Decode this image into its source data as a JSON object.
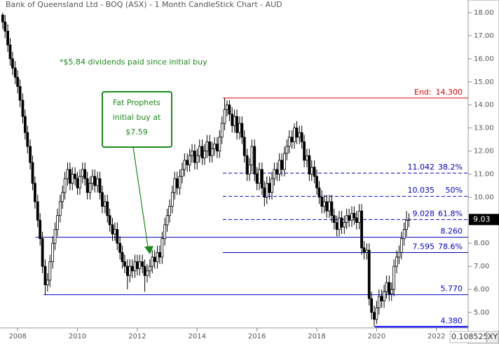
{
  "chart_data": {
    "type": "candlestick",
    "title": "Bank of Queensland Ltd - BOQ (ASX) - 1 Month CandleStick Chart - AUD",
    "note": "*$5.84 dividends paid since initial buy",
    "callout": [
      "Fat Prophets",
      "initial buy at",
      "$7.59"
    ],
    "x": [
      2007.5,
      2007.58,
      2007.67,
      2007.75,
      2007.83,
      2007.92,
      2008,
      2008.08,
      2008.17,
      2008.25,
      2008.33,
      2008.42,
      2008.5,
      2008.58,
      2008.67,
      2008.75,
      2008.83,
      2008.92,
      2009,
      2009.08,
      2009.17,
      2009.25,
      2009.33,
      2009.42,
      2009.5,
      2009.58,
      2009.67,
      2009.75,
      2009.83,
      2009.92,
      2010,
      2010.08,
      2010.17,
      2010.25,
      2010.33,
      2010.42,
      2010.5,
      2010.58,
      2010.67,
      2010.75,
      2010.83,
      2010.92,
      2011,
      2011.08,
      2011.17,
      2011.25,
      2011.33,
      2011.42,
      2011.5,
      2011.58,
      2011.67,
      2011.75,
      2011.83,
      2011.92,
      2012,
      2012.08,
      2012.17,
      2012.25,
      2012.33,
      2012.42,
      2012.5,
      2012.58,
      2012.67,
      2012.75,
      2012.83,
      2012.92,
      2013,
      2013.08,
      2013.17,
      2013.25,
      2013.33,
      2013.42,
      2013.5,
      2013.58,
      2013.67,
      2013.75,
      2013.83,
      2013.92,
      2014,
      2014.08,
      2014.17,
      2014.25,
      2014.33,
      2014.42,
      2014.5,
      2014.58,
      2014.67,
      2014.75,
      2014.83,
      2014.92,
      2015,
      2015.08,
      2015.17,
      2015.25,
      2015.33,
      2015.42,
      2015.5,
      2015.58,
      2015.67,
      2015.75,
      2015.83,
      2015.92,
      2016,
      2016.08,
      2016.17,
      2016.25,
      2016.33,
      2016.42,
      2016.5,
      2016.58,
      2016.67,
      2016.75,
      2016.83,
      2016.92,
      2017,
      2017.08,
      2017.17,
      2017.25,
      2017.33,
      2017.42,
      2017.5,
      2017.58,
      2017.67,
      2017.75,
      2017.83,
      2017.92,
      2018,
      2018.08,
      2018.17,
      2018.25,
      2018.33,
      2018.42,
      2018.5,
      2018.58,
      2018.67,
      2018.75,
      2018.83,
      2018.92,
      2019,
      2019.08,
      2019.17,
      2019.25,
      2019.33,
      2019.42,
      2019.5,
      2019.58,
      2019.67,
      2019.75,
      2019.83,
      2019.92,
      2020,
      2020.08,
      2020.17,
      2020.25,
      2020.33,
      2020.42,
      2020.5,
      2020.58,
      2020.67,
      2020.75,
      2020.83,
      2020.92,
      2021,
      2021.08
    ],
    "open": [
      17.9,
      17.6,
      17.2,
      16.6,
      16.0,
      15.6,
      15.2,
      14.8,
      14.2,
      13.5,
      12.8,
      12.2,
      11.5,
      10.6,
      9.8,
      9.0,
      8.2,
      7.0,
      6.2,
      6.4,
      7.2,
      8.0,
      8.6,
      9.2,
      9.8,
      10.2,
      10.8,
      11.2,
      10.6,
      11.0,
      10.8,
      10.4,
      10.9,
      11.2,
      10.8,
      10.2,
      10.6,
      10.9,
      10.5,
      10.8,
      10.2,
      9.6,
      9.8,
      9.2,
      8.8,
      8.4,
      8.6,
      8.0,
      7.6,
      7.2,
      7.0,
      6.6,
      7.0,
      6.8,
      7.2,
      6.9,
      7.2,
      7.0,
      6.6,
      6.8,
      7.0,
      7.4,
      7.2,
      7.6,
      7.4,
      8.2,
      8.8,
      9.2,
      9.6,
      10.2,
      10.8,
      10.4,
      10.9,
      11.2,
      11.6,
      11.4,
      11.8,
      12.0,
      11.5,
      11.8,
      12.2,
      11.7,
      12.0,
      12.4,
      11.8,
      12.1,
      12.3,
      12.0,
      12.6,
      13.2,
      13.8,
      14.0,
      13.6,
      13.1,
      13.5,
      12.8,
      13.2,
      12.6,
      11.8,
      11.0,
      11.4,
      12.2,
      11.0,
      10.6,
      11.2,
      10.4,
      10.0,
      10.6,
      10.2,
      10.8,
      11.2,
      11.0,
      11.6,
      11.2,
      11.9,
      12.2,
      12.6,
      12.4,
      13.0,
      12.6,
      12.8,
      12.4,
      11.6,
      11.8,
      11.0,
      11.3,
      10.9,
      10.4,
      10.0,
      9.6,
      9.8,
      9.4,
      9.8,
      9.2,
      8.9,
      8.6,
      9.1,
      8.7,
      8.9,
      9.2,
      9.0,
      9.3,
      9.1,
      8.9,
      9.4,
      7.8,
      7.6,
      7.7,
      5.6,
      5.0,
      4.7,
      5.2,
      5.7,
      5.5,
      5.9,
      6.3,
      5.8,
      6.0,
      7.0,
      7.4,
      7.6,
      8.2,
      8.6,
      9.0
    ],
    "high": [
      18.0,
      17.9,
      17.5,
      16.9,
      16.3,
      15.9,
      15.5,
      15.1,
      14.5,
      13.8,
      13.1,
      12.5,
      11.8,
      10.9,
      10.1,
      9.3,
      8.5,
      7.3,
      6.7,
      7.5,
      8.3,
      8.9,
      9.5,
      10.1,
      10.5,
      11.1,
      11.5,
      11.5,
      11.3,
      11.3,
      11.1,
      11.2,
      11.5,
      11.5,
      11.1,
      10.9,
      11.2,
      11.2,
      11.1,
      11.1,
      10.5,
      10.1,
      10.1,
      9.5,
      9.1,
      8.9,
      8.9,
      8.3,
      7.9,
      7.5,
      7.3,
      7.3,
      7.3,
      7.5,
      7.5,
      7.5,
      7.5,
      7.3,
      7.1,
      7.3,
      7.7,
      7.7,
      7.9,
      7.9,
      8.5,
      9.1,
      9.5,
      9.9,
      10.5,
      11.1,
      11.1,
      11.2,
      11.5,
      11.9,
      11.9,
      12.1,
      12.3,
      12.3,
      12.1,
      12.5,
      12.5,
      12.3,
      12.7,
      12.7,
      12.4,
      12.6,
      12.6,
      12.9,
      13.5,
      14.3,
      14.2,
      14.2,
      13.9,
      13.8,
      13.8,
      13.5,
      13.5,
      12.9,
      12.1,
      11.7,
      12.5,
      12.5,
      11.3,
      11.5,
      11.5,
      10.7,
      10.9,
      10.9,
      11.1,
      11.5,
      11.5,
      11.9,
      11.9,
      12.2,
      12.5,
      12.9,
      12.9,
      13.2,
      13.3,
      13.1,
      13.1,
      12.7,
      12.1,
      12.1,
      11.6,
      11.6,
      11.2,
      10.7,
      10.3,
      10.1,
      10.1,
      10.1,
      10.1,
      9.5,
      9.2,
      9.4,
      9.4,
      9.2,
      9.5,
      9.5,
      9.6,
      9.6,
      9.4,
      9.7,
      9.7,
      8.1,
      8.0,
      8.0,
      5.9,
      5.3,
      5.5,
      6.0,
      6.0,
      6.2,
      6.6,
      6.6,
      6.3,
      7.3,
      7.7,
      7.9,
      8.5,
      8.9,
      9.4,
      9.3
    ],
    "low": [
      17.3,
      16.9,
      16.3,
      15.7,
      15.3,
      14.9,
      14.5,
      13.9,
      13.2,
      12.5,
      11.9,
      11.2,
      10.3,
      9.5,
      8.7,
      7.9,
      6.7,
      5.77,
      5.9,
      6.1,
      6.9,
      7.7,
      8.3,
      8.9,
      9.5,
      9.9,
      10.5,
      10.3,
      10.3,
      10.5,
      10.1,
      10.1,
      10.6,
      10.5,
      9.9,
      9.9,
      10.3,
      10.2,
      10.2,
      9.9,
      9.3,
      9.3,
      8.9,
      8.5,
      8.1,
      8.1,
      7.7,
      7.3,
      6.9,
      6.7,
      6.0,
      6.3,
      6.5,
      6.5,
      6.6,
      6.6,
      6.7,
      5.9,
      6.3,
      6.5,
      6.7,
      6.9,
      6.9,
      7.1,
      7.1,
      7.9,
      8.5,
      8.9,
      9.3,
      9.9,
      10.1,
      10.1,
      10.6,
      10.9,
      11.1,
      11.1,
      11.5,
      11.2,
      11.2,
      11.5,
      11.4,
      11.4,
      11.7,
      11.5,
      11.5,
      11.8,
      11.7,
      11.7,
      12.3,
      12.9,
      13.5,
      13.3,
      12.8,
      12.8,
      12.5,
      12.5,
      12.3,
      11.5,
      10.7,
      10.7,
      11.1,
      10.7,
      10.3,
      10.3,
      10.1,
      9.6,
      9.7,
      9.9,
      9.9,
      10.5,
      10.7,
      10.7,
      10.9,
      10.9,
      11.6,
      11.9,
      12.1,
      12.1,
      12.3,
      12.3,
      12.1,
      11.3,
      11.3,
      10.7,
      10.7,
      10.6,
      10.1,
      9.7,
      9.3,
      9.3,
      9.1,
      9.1,
      8.9,
      8.6,
      8.3,
      8.3,
      8.4,
      8.4,
      8.6,
      8.7,
      8.7,
      8.8,
      8.6,
      8.6,
      7.5,
      7.3,
      7.3,
      5.3,
      4.7,
      4.38,
      4.5,
      4.9,
      5.2,
      5.2,
      5.6,
      5.5,
      5.5,
      5.7,
      6.7,
      7.1,
      7.3,
      7.9,
      8.3,
      8.7
    ],
    "close": [
      17.6,
      17.2,
      16.6,
      16.0,
      15.6,
      15.2,
      14.8,
      14.2,
      13.5,
      12.8,
      12.2,
      11.5,
      10.6,
      9.8,
      9.0,
      8.2,
      7.0,
      6.2,
      6.4,
      7.2,
      8.0,
      8.6,
      9.2,
      9.8,
      10.2,
      10.8,
      11.2,
      10.6,
      11.0,
      10.8,
      10.4,
      10.9,
      11.2,
      10.8,
      10.2,
      10.6,
      10.9,
      10.5,
      10.8,
      10.2,
      9.6,
      9.8,
      9.2,
      8.8,
      8.4,
      8.6,
      8.0,
      7.6,
      7.2,
      7.0,
      6.6,
      7.0,
      6.8,
      7.2,
      6.9,
      7.2,
      7.0,
      6.6,
      6.8,
      7.0,
      7.4,
      7.2,
      7.6,
      7.4,
      8.2,
      8.8,
      9.2,
      9.6,
      10.2,
      10.8,
      10.4,
      10.9,
      11.2,
      11.6,
      11.4,
      11.8,
      12.0,
      11.5,
      11.8,
      12.2,
      11.7,
      12.0,
      12.4,
      11.8,
      12.1,
      12.3,
      12.0,
      12.6,
      13.2,
      13.8,
      14.0,
      13.6,
      13.1,
      13.5,
      12.8,
      13.2,
      12.6,
      11.8,
      11.0,
      11.4,
      12.2,
      11.0,
      10.6,
      11.2,
      10.4,
      10.0,
      10.6,
      10.2,
      10.8,
      11.2,
      11.0,
      11.6,
      11.2,
      11.9,
      12.2,
      12.6,
      12.4,
      13.0,
      12.6,
      12.8,
      12.4,
      11.6,
      11.8,
      11.0,
      11.3,
      10.9,
      10.4,
      10.0,
      9.6,
      9.8,
      9.4,
      9.8,
      9.2,
      8.9,
      8.6,
      9.1,
      8.7,
      8.9,
      9.2,
      9.0,
      9.3,
      9.1,
      8.9,
      9.4,
      7.8,
      7.6,
      7.7,
      5.6,
      5.0,
      4.7,
      5.2,
      5.7,
      5.5,
      5.9,
      6.3,
      5.8,
      6.0,
      7.0,
      7.4,
      7.6,
      8.2,
      8.6,
      9.0,
      9.03
    ],
    "up_color": "#ffffff",
    "down_color": "#000000",
    "xlim": [
      2007.41,
      2023.06
    ],
    "xticks": [
      2008,
      2010,
      2012,
      2014,
      2016,
      2018,
      2020,
      2022
    ],
    "ylim": [
      4.33,
      18.55
    ],
    "yticks": [
      {
        "value": 5,
        "label": "5.00"
      },
      {
        "value": 6,
        "label": "6.00"
      },
      {
        "value": 7,
        "label": "7.00"
      },
      {
        "value": 8,
        "label": "8.00"
      },
      {
        "value": 9,
        "label": "9.00"
      },
      {
        "value": 10,
        "label": "10.00"
      },
      {
        "value": 11,
        "label": "11.00"
      },
      {
        "value": 12,
        "label": "12.00"
      },
      {
        "value": 13,
        "label": "13.00"
      },
      {
        "value": 14,
        "label": "14.00"
      },
      {
        "value": 15,
        "label": "15.00"
      },
      {
        "value": 16,
        "label": "16.00"
      },
      {
        "value": 17,
        "label": "17.00"
      },
      {
        "value": 18,
        "label": "18.00"
      }
    ],
    "last_price": 9.03,
    "levels": [
      {
        "value": 14.3,
        "label": "14.300",
        "prefix": "End:",
        "color": "#e00000",
        "style": "solid",
        "x_start": 2014.86
      },
      {
        "value": 11.042,
        "label": "11.042",
        "pct": "38.2%",
        "color": "#0000c0",
        "style": "dashed",
        "x_start": 2014.86
      },
      {
        "value": 10.035,
        "label": "10.035",
        "pct": "50%",
        "color": "#0000c0",
        "style": "dashed",
        "x_start": 2014.86
      },
      {
        "value": 9.028,
        "label": "9.028",
        "pct": "61.8%",
        "color": "#0000c0",
        "style": "dashed",
        "x_start": 2014.86
      },
      {
        "value": 7.595,
        "label": "7.595",
        "pct": "78.6%",
        "color": "#0000c0",
        "style": "solid",
        "x_start": 2014.86
      },
      {
        "value": 8.26,
        "label": "8.260",
        "color": "#0000c0",
        "style": "solid",
        "x_start": 2008.59
      },
      {
        "value": 5.77,
        "label": "5.770",
        "color": "#0000c0",
        "style": "solid",
        "x_start": 2008.87
      },
      {
        "value": 4.38,
        "label": "4.380",
        "color": "#0000ff",
        "style": "solid",
        "x_start": 2019.94,
        "bold": true
      }
    ],
    "readout": "0.1085252",
    "button": "XY"
  }
}
